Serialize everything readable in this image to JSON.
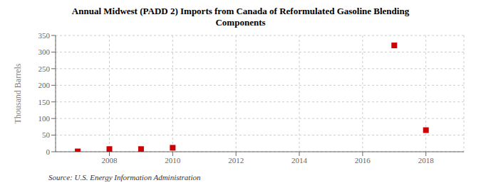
{
  "chart_data": {
    "type": "scatter",
    "title": "Annual Midwest (PADD 2) Imports from Canada of Reformulated Gasoline Blending\nComponents",
    "ylabel": "Thousand Barrels",
    "annotations": [
      "Source: U.S. Energy Information Administration"
    ],
    "x": [
      2007,
      2008,
      2009,
      2010,
      2017,
      2018
    ],
    "values": [
      1,
      8,
      8,
      12,
      320,
      65
    ],
    "color": "#cc0000",
    "marker": "square",
    "xlim": [
      2006.3,
      2019.2
    ],
    "xticks": [
      2008,
      2010,
      2012,
      2014,
      2016,
      2018
    ],
    "ylim": [
      0,
      350
    ],
    "yticks": [
      0,
      50,
      100,
      150,
      200,
      250,
      300,
      350
    ],
    "grid": true
  }
}
